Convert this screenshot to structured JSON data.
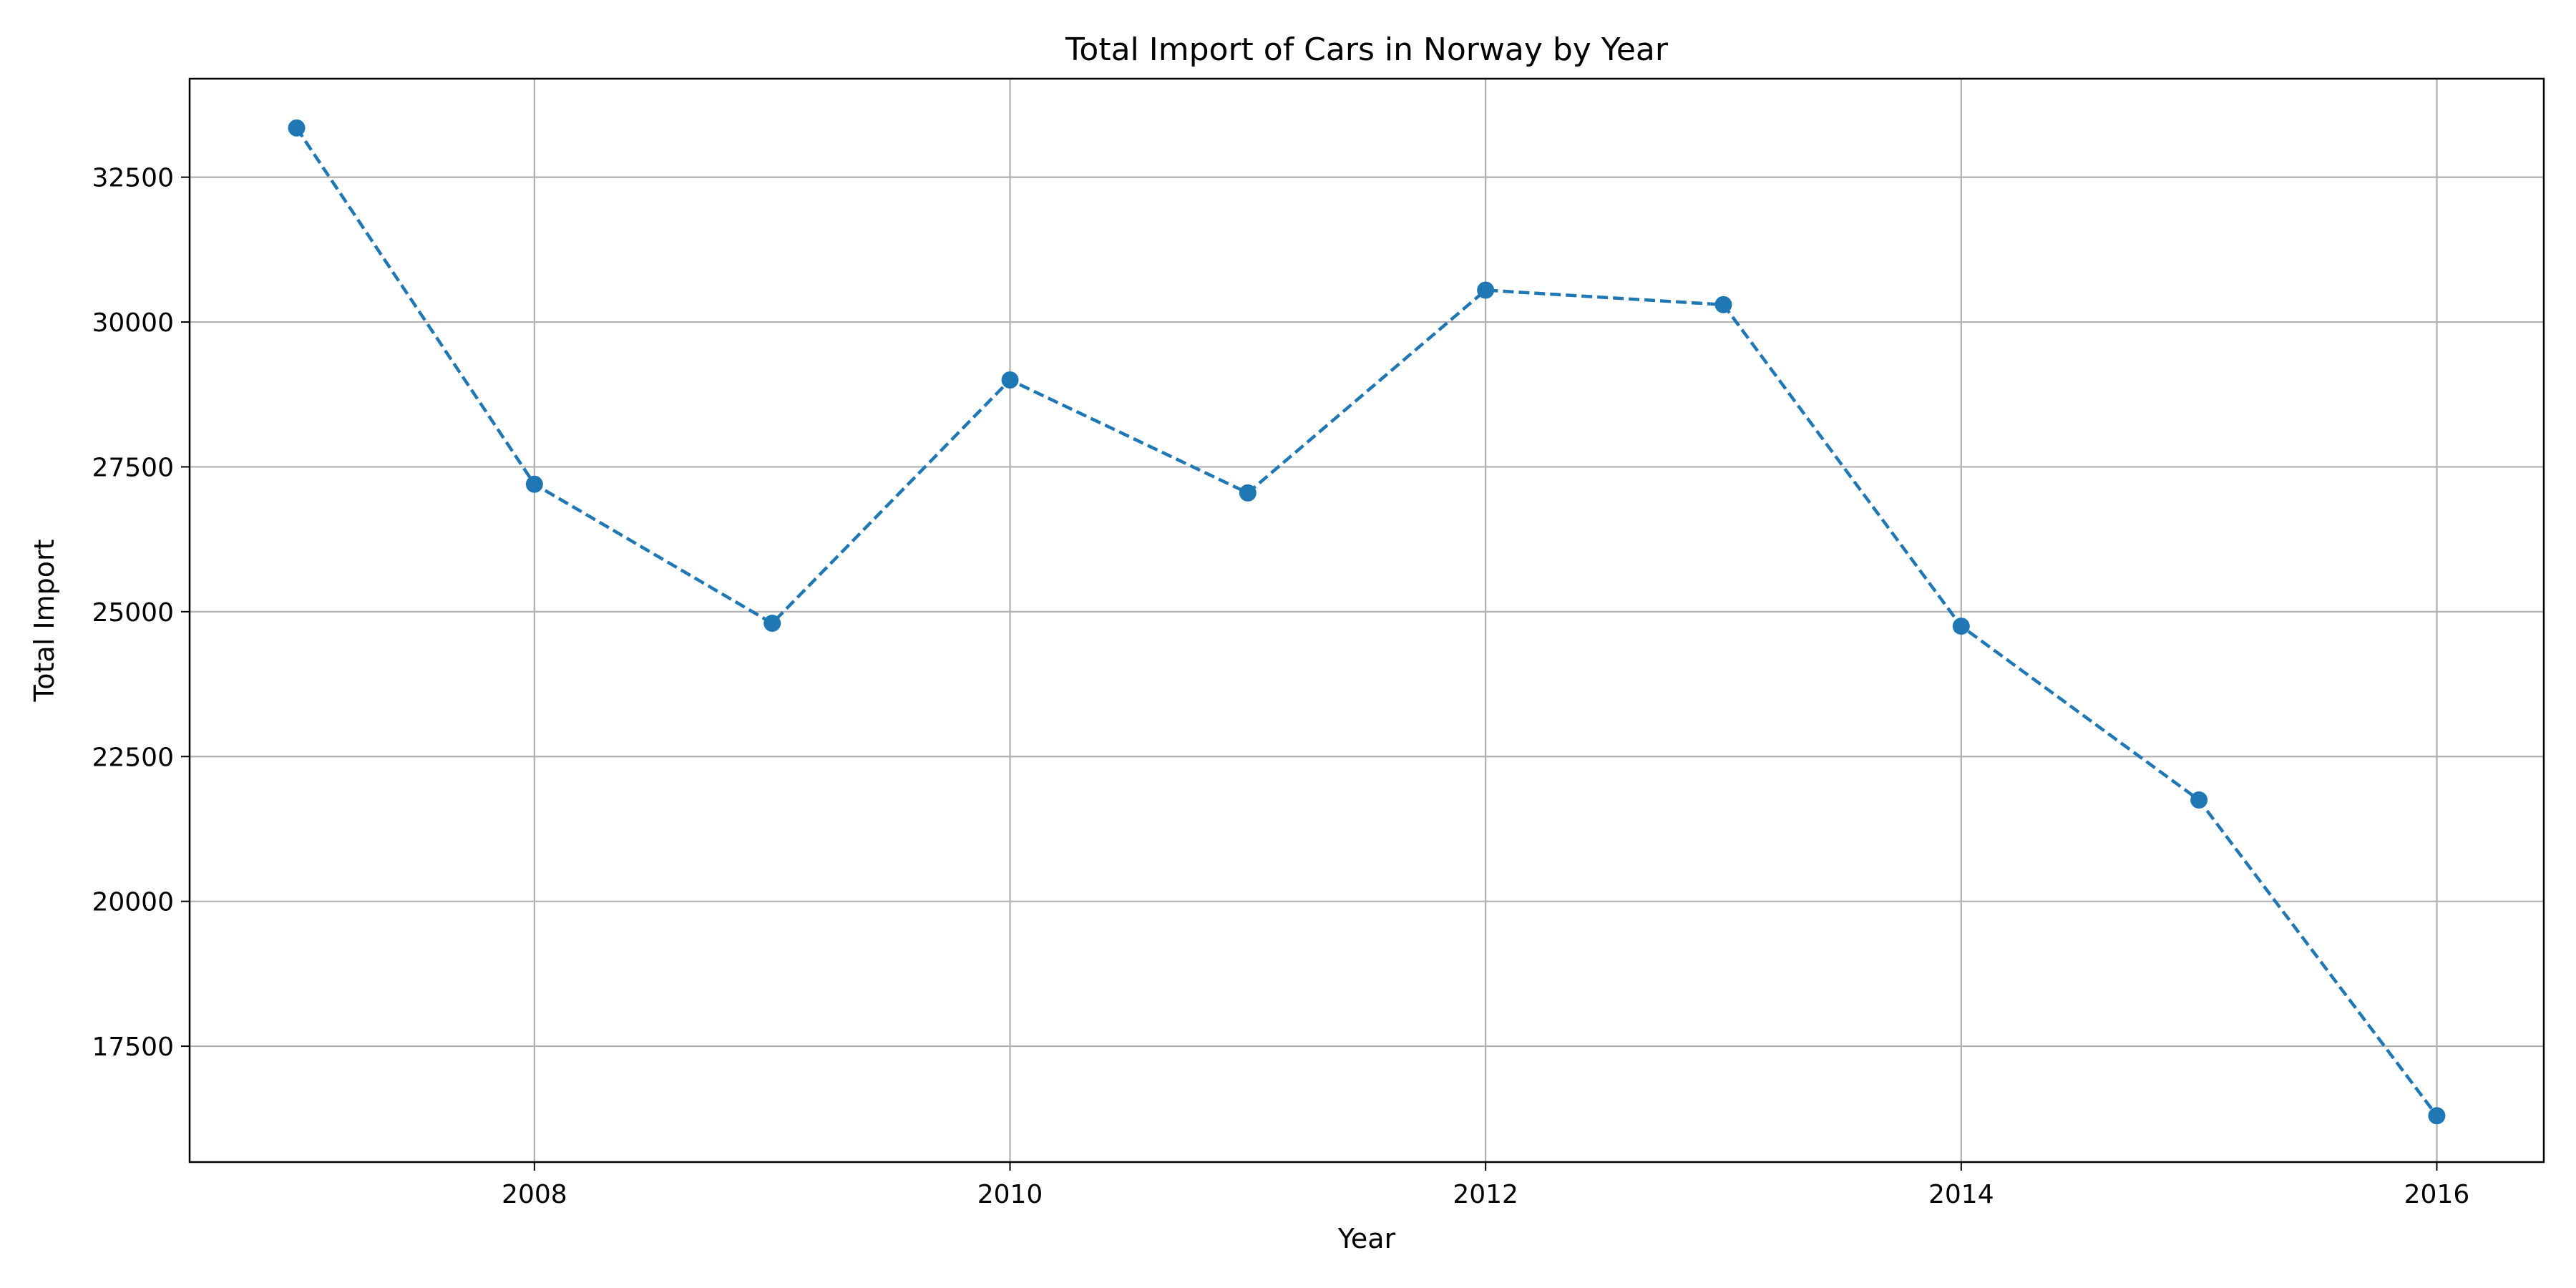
{
  "chart_data": {
    "type": "line",
    "title": "Total Import of Cars in Norway by Year",
    "xlabel": "Year",
    "ylabel": "Total Import",
    "x": [
      2007,
      2008,
      2009,
      2010,
      2011,
      2012,
      2013,
      2014,
      2015,
      2016
    ],
    "series": [
      {
        "values": [
          33350,
          27200,
          24800,
          29000,
          27050,
          30550,
          30300,
          24750,
          21750,
          16300
        ],
        "color": "#1f77b4",
        "line_style": "dashed",
        "marker": "circle"
      }
    ],
    "xlim": [
      2006.55,
      2016.45
    ],
    "ylim": [
      15500,
      34200
    ],
    "x_ticks": [
      2008,
      2010,
      2012,
      2014,
      2016
    ],
    "y_ticks": [
      17500,
      20000,
      22500,
      25000,
      27500,
      30000,
      32500
    ],
    "grid": true,
    "legend": "none"
  }
}
